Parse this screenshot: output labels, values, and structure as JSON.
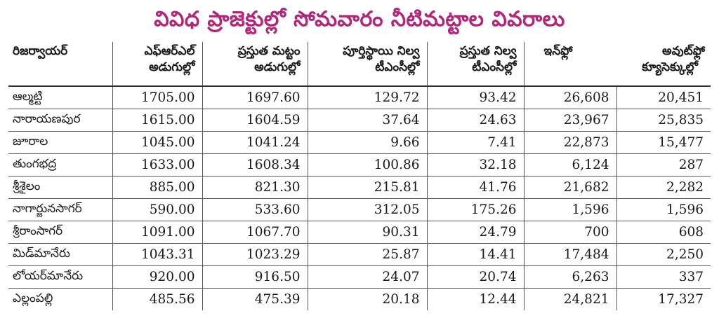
{
  "title": "వివిధ ప్రాజెక్టుల్లో సోమవారం నీటిమట్టాల వివరాలు",
  "headers": {
    "name": "రిజర్వాయర్",
    "frl": [
      "ఎఫ్‌ఆర్‌ఎల్",
      "అడుగుల్లో"
    ],
    "current_level": [
      "ప్రస్తుత మట్టం",
      "అడుగుల్లో"
    ],
    "full_storage": [
      "పూర్తిస్థాయి నిల్వ",
      "టీఎంసీల్లో"
    ],
    "current_storage": [
      "ప్రస్తుత నిల్వ",
      "టీఎంసీల్లో"
    ],
    "inflow": "ఇన్‌ఫ్లో",
    "outflow": "అవుట్‌ఫ్లో",
    "flow_unit": "క్యూసెక్కుల్లో"
  },
  "rows": [
    {
      "name": "ఆల్మట్టి",
      "frl": "1705.00",
      "current_level": "1697.60",
      "full_storage": "129.72",
      "current_storage": "93.42",
      "inflow": "26,608",
      "outflow": "20,451"
    },
    {
      "name": "నారాయణపుర",
      "frl": "1615.00",
      "current_level": "1604.59",
      "full_storage": "37.64",
      "current_storage": "24.63",
      "inflow": "23,967",
      "outflow": "25,835"
    },
    {
      "name": "జూరాల",
      "frl": "1045.00",
      "current_level": "1041.24",
      "full_storage": "9.66",
      "current_storage": "7.41",
      "inflow": "22,873",
      "outflow": "15,477"
    },
    {
      "name": "తుంగభద్ర",
      "frl": "1633.00",
      "current_level": "1608.34",
      "full_storage": "100.86",
      "current_storage": "32.18",
      "inflow": "6,124",
      "outflow": "287"
    },
    {
      "name": "శ్రీశైలం",
      "frl": "885.00",
      "current_level": "821.30",
      "full_storage": "215.81",
      "current_storage": "41.76",
      "inflow": "21,682",
      "outflow": "2,282"
    },
    {
      "name": "నాగార్జునసాగర్",
      "frl": "590.00",
      "current_level": "533.60",
      "full_storage": "312.05",
      "current_storage": "175.26",
      "inflow": "1,596",
      "outflow": "1,596"
    },
    {
      "name": "శ్రీరాంసాగర్",
      "frl": "1091.00",
      "current_level": "1067.70",
      "full_storage": "90.31",
      "current_storage": "24.79",
      "inflow": "700",
      "outflow": "608"
    },
    {
      "name": "మిడ్‌మానేరు",
      "frl": "1043.31",
      "current_level": "1023.29",
      "full_storage": "25.87",
      "current_storage": "14.41",
      "inflow": "17,484",
      "outflow": "2,250"
    },
    {
      "name": "లోయర్‌మానేరు",
      "frl": "920.00",
      "current_level": "916.50",
      "full_storage": "24.07",
      "current_storage": "20.74",
      "inflow": "6,263",
      "outflow": "337"
    },
    {
      "name": "ఎల్లంపల్లి",
      "frl": "485.56",
      "current_level": "475.39",
      "full_storage": "20.18",
      "current_storage": "12.44",
      "inflow": "24,821",
      "outflow": "17,327"
    }
  ]
}
